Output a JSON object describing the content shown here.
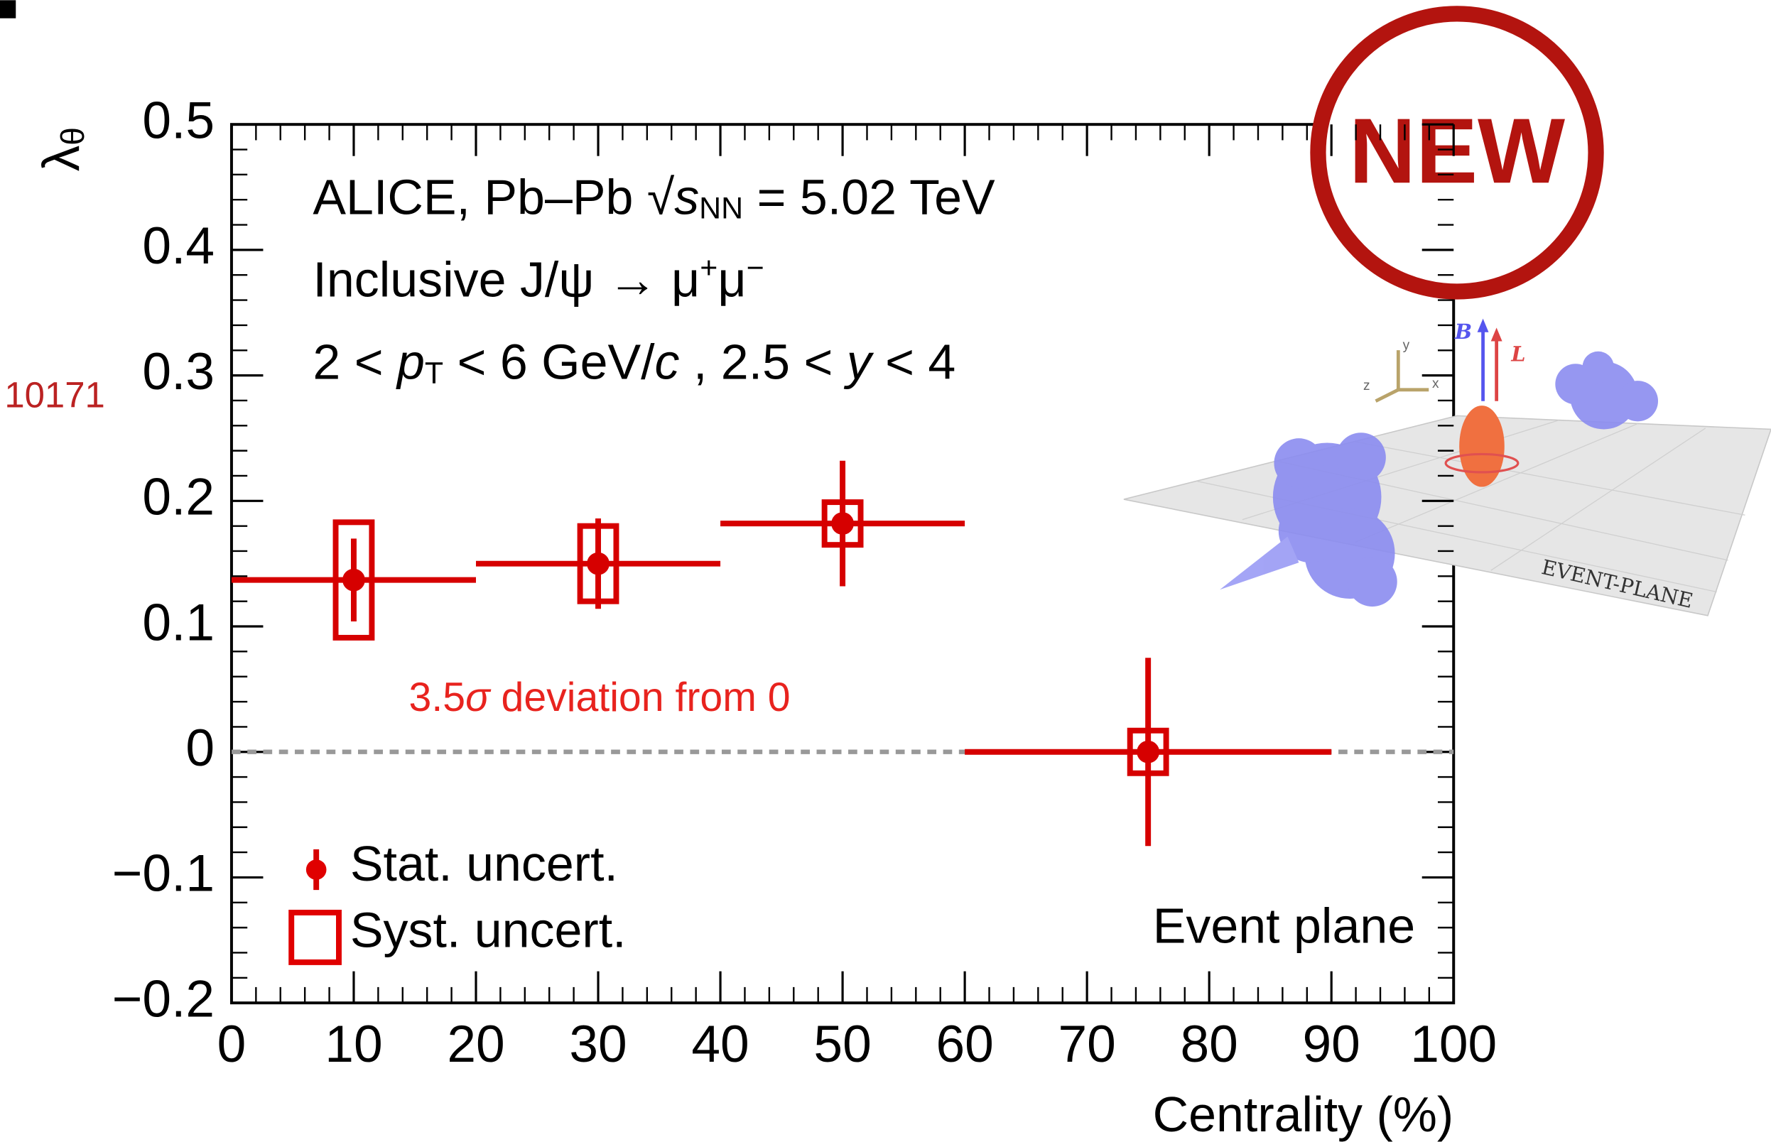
{
  "chart_data": {
    "type": "errorbar",
    "header": [
      [
        {
          "text": "ALICE, Pb–Pb ",
          "style": "normal"
        },
        {
          "text": "√",
          "style": "normal"
        },
        {
          "text": "s",
          "style": "italic"
        },
        {
          "text": "NN",
          "style": "sub"
        },
        {
          "text": " = 5.02 TeV",
          "style": "normal"
        }
      ],
      [
        {
          "text": "Inclusive J/ψ → μ",
          "style": "normal"
        },
        {
          "text": "+",
          "style": "sup"
        },
        {
          "text": "μ",
          "style": "normal"
        },
        {
          "text": "−",
          "style": "sup"
        }
      ],
      [
        {
          "text": "2 < ",
          "style": "normal"
        },
        {
          "text": "p",
          "style": "italic"
        },
        {
          "text": "T",
          "style": "sub"
        },
        {
          "text": " < 6 GeV/",
          "style": "normal"
        },
        {
          "text": "c",
          "style": "italic"
        },
        {
          "text": " , 2.5 < ",
          "style": "normal"
        },
        {
          "text": "y",
          "style": "italic"
        },
        {
          "text": " < 4",
          "style": "normal"
        }
      ]
    ],
    "badge": "NEW",
    "side_label": "10171",
    "annotation": [
      {
        "text": "3.5",
        "style": "normal"
      },
      {
        "text": "σ",
        "style": "italic"
      },
      {
        "text": " deviation from 0",
        "style": "normal"
      }
    ],
    "corner_label": "Event plane",
    "legend": [
      "Stat. uncert.",
      "Syst. uncert."
    ],
    "x_label": "Centrality (%)",
    "y_label": [
      {
        "text": "λ",
        "style": "normal"
      },
      {
        "text": "θ",
        "style": "sub"
      }
    ],
    "illustration_labels": [
      "EVENT-PLANE",
      "B",
      "L",
      "x",
      "y",
      "z"
    ],
    "bins": [
      0,
      20,
      40,
      60,
      90
    ],
    "x": [
      10,
      30,
      50,
      75
    ],
    "values": [
      0.137,
      0.15,
      0.182,
      0.0
    ],
    "stat_errors": [
      0.033,
      0.036,
      0.05,
      0.075
    ],
    "syst_errors": [
      0.046,
      0.03,
      0.017,
      0.017
    ],
    "color": "#d60000",
    "reference_line": 0,
    "xlim": [
      0,
      100
    ],
    "xticks": [
      0,
      10,
      20,
      30,
      40,
      50,
      60,
      70,
      80,
      90,
      100
    ],
    "ylim": [
      -0.2,
      0.5
    ],
    "yticks": [
      {
        "value": -0.2,
        "label": "−0.2"
      },
      {
        "value": -0.1,
        "label": "−0.1"
      },
      0,
      0.1,
      0.2,
      0.3,
      0.4,
      0.5
    ]
  }
}
